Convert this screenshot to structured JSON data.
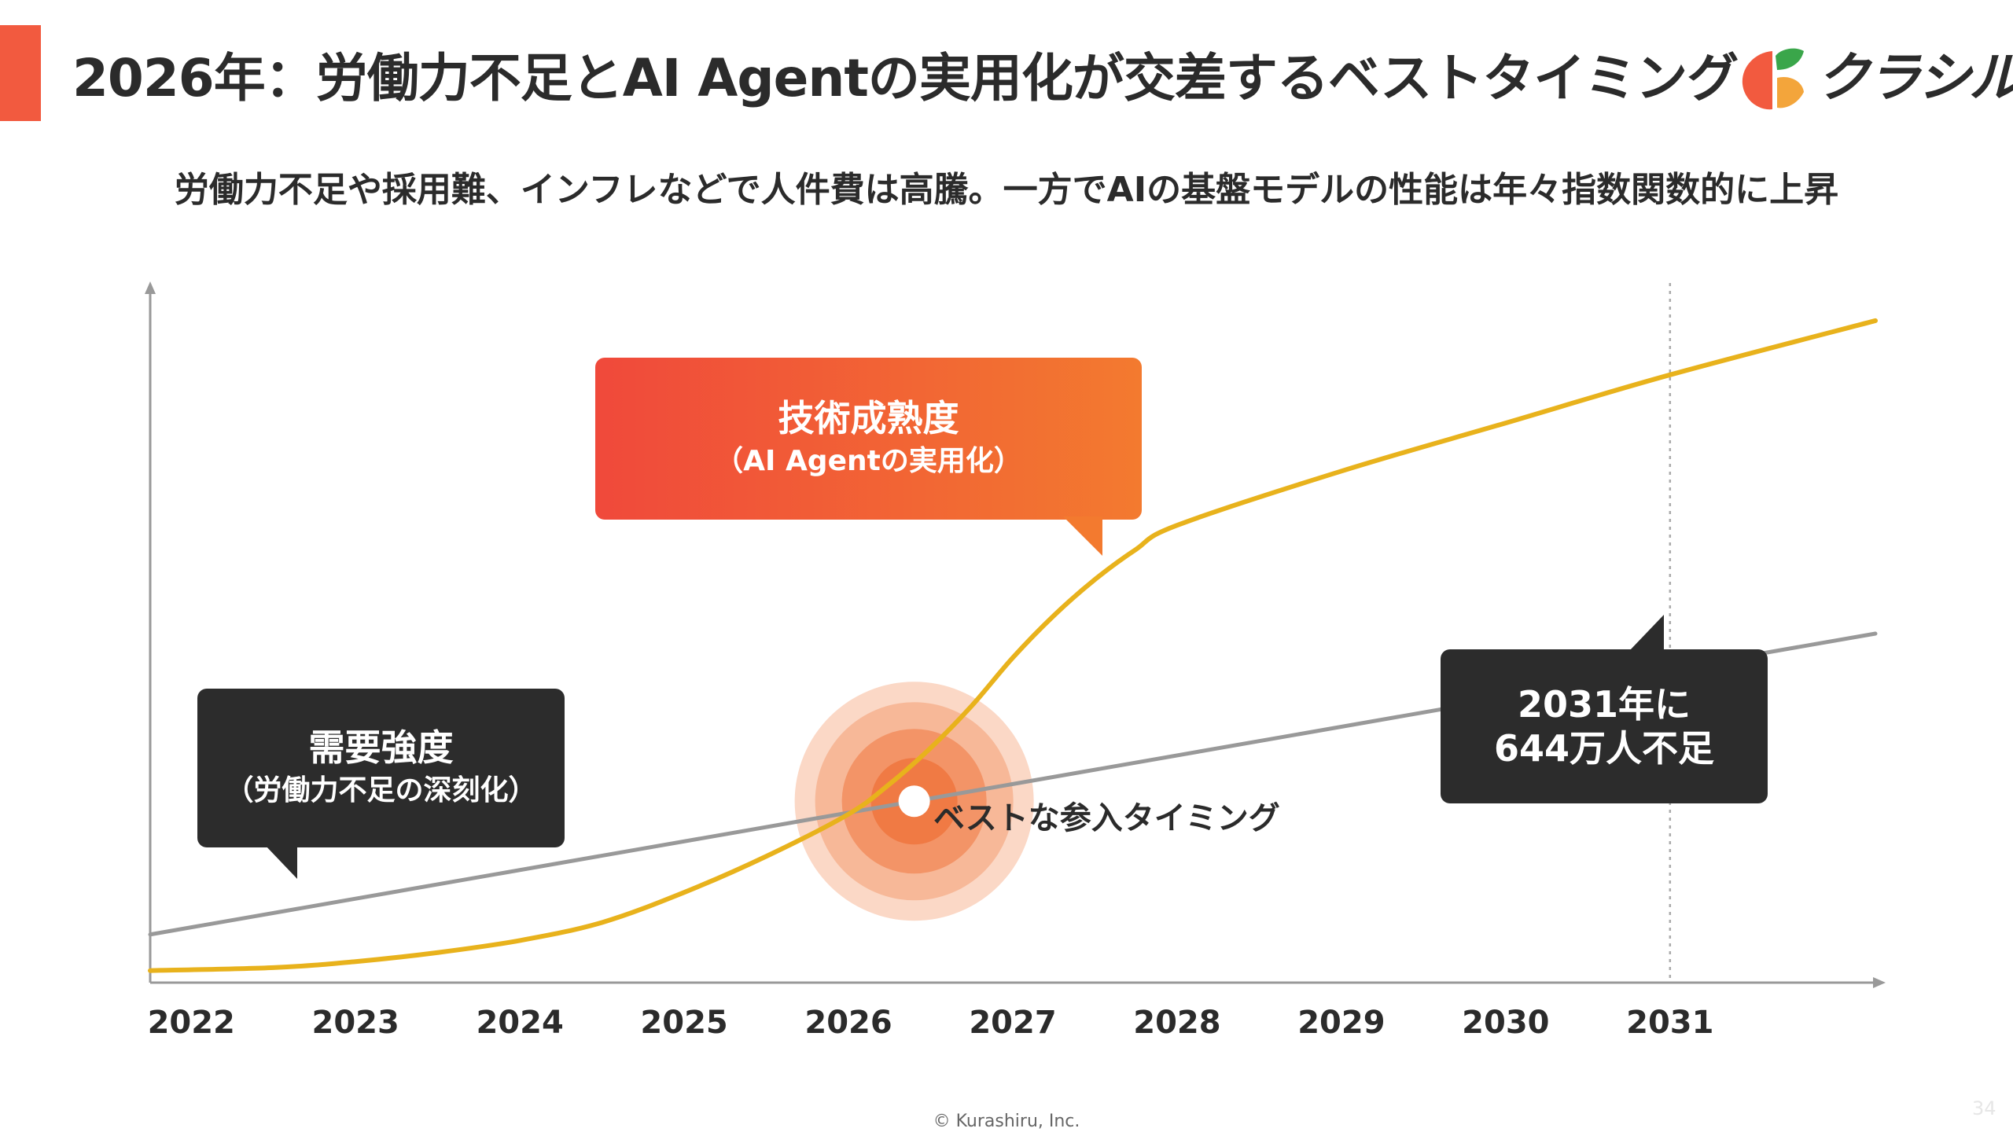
{
  "header": {
    "title": "2026年：労働力不足とAI Agentの実用化が交差するベストタイミング",
    "logo_text": "クラシル"
  },
  "subtitle": "労働力不足や採用難、インフレなどで人件費は高騰。一方でAIの基盤モデルの性能は年々指数関数的に上昇",
  "chart_data": {
    "type": "line",
    "title": "",
    "xlabel": "",
    "ylabel": "",
    "categories": [
      "2022",
      "2023",
      "2024",
      "2025",
      "2026",
      "2027",
      "2028",
      "2029",
      "2030",
      "2031"
    ],
    "series": [
      {
        "name": "技術成熟度（AI Agentの実用化）",
        "color": "#e8b21c",
        "x": [
          2021.75,
          2022.5,
          2023,
          2023.5,
          2024,
          2024.5,
          2025,
          2025.5,
          2026,
          2026.25,
          2026.5,
          2026.75,
          2027,
          2027.25,
          2027.5,
          2027.75,
          2028,
          2029,
          2030,
          2031,
          2032.25
        ],
        "y": [
          2,
          2.5,
          3.5,
          5,
          7,
          10,
          15,
          21,
          28,
          33,
          39,
          46,
          54,
          61,
          67,
          72,
          76,
          85,
          93,
          101,
          110
        ]
      },
      {
        "name": "需要強度（労働力不足の深刻化）",
        "color": "#999999",
        "x": [
          2021.75,
          2032.25
        ],
        "y": [
          8,
          58
        ]
      }
    ],
    "xlim": [
      2021.75,
      2032.25
    ],
    "ylim": [
      0,
      116
    ],
    "grid": false,
    "vline_x": 2031,
    "highlight": {
      "x": 2026.4,
      "label": "ベストな参入タイミング"
    },
    "annotations": {
      "tech": {
        "title": "技術成熟度",
        "sub": "（AI Agentの実用化）"
      },
      "demand": {
        "title": "需要強度",
        "sub": "（労働力不足の深刻化）"
      },
      "shortage": {
        "line1": "2031年に",
        "line2": "644万人不足"
      }
    }
  },
  "footer": "© Kurashiru, Inc.",
  "page_number": "34"
}
